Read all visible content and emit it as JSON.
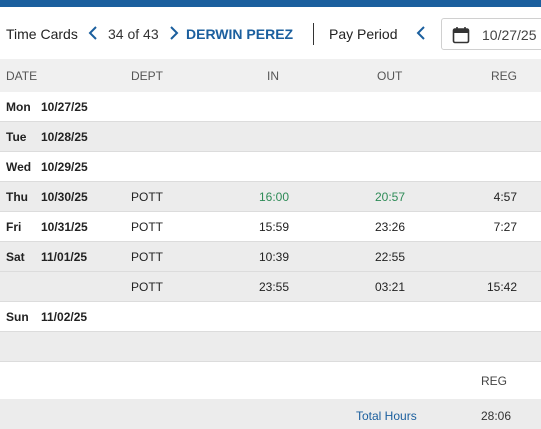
{
  "toolbar": {
    "title": "Time Cards",
    "counter": "34 of 43",
    "employee_name": "DERWIN PEREZ",
    "pay_period_label": "Pay Period",
    "date_value": "10/27/25",
    "accent_color": "#1b5f9e"
  },
  "columns": {
    "date": "DATE",
    "dept": "DEPT",
    "in": "IN",
    "out": "OUT",
    "reg": "REG"
  },
  "rows": [
    {
      "day": "Mon",
      "date": "10/27/25",
      "dept": "",
      "in": "",
      "out": "",
      "reg": ""
    },
    {
      "day": "Tue",
      "date": "10/28/25",
      "dept": "",
      "in": "",
      "out": "",
      "reg": ""
    },
    {
      "day": "Wed",
      "date": "10/29/25",
      "dept": "",
      "in": "",
      "out": "",
      "reg": ""
    },
    {
      "day": "Thu",
      "date": "10/30/25",
      "dept": "POTT",
      "in": "16:00",
      "out": "20:57",
      "reg": "4:57"
    },
    {
      "day": "Fri",
      "date": "10/31/25",
      "dept": "POTT",
      "in": "15:59",
      "out": "23:26",
      "reg": "7:27"
    },
    {
      "day": "Sat",
      "date": "11/01/25",
      "dept": "POTT",
      "in": "10:39",
      "out": "22:55",
      "reg": ""
    },
    {
      "day": "",
      "date": "",
      "dept": "POTT",
      "in": "23:55",
      "out": "03:21",
      "reg": "15:42"
    },
    {
      "day": "Sun",
      "date": "11/02/25",
      "dept": "",
      "in": "",
      "out": "",
      "reg": ""
    }
  ],
  "footer": {
    "reg_label": "REG",
    "total_label": "Total Hours",
    "total_value": "28:06"
  }
}
